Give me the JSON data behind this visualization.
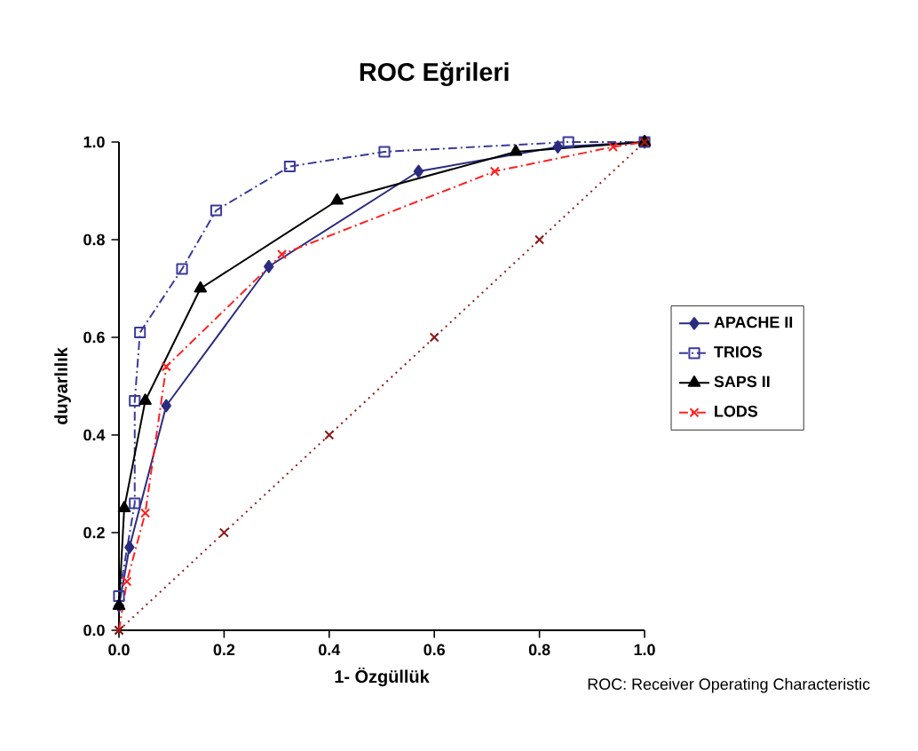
{
  "chart_data": {
    "type": "line",
    "title": "ROC Eğrileri",
    "xlabel": "1- Özgüllük",
    "ylabel": "duyarlılık",
    "annotations": [
      "ROC: Receiver Operating Characteristic"
    ],
    "xlim": [
      0,
      1
    ],
    "ylim": [
      0,
      1
    ],
    "xticks": [
      {
        "value": 0,
        "label": "0.0"
      },
      {
        "value": 0.2,
        "label": "0.2"
      },
      {
        "value": 0.4,
        "label": "0.4"
      },
      {
        "value": 0.6,
        "label": "0.6"
      },
      {
        "value": 0.8,
        "label": "0.8"
      },
      {
        "value": 1,
        "label": "1.0"
      }
    ],
    "yticks": [
      {
        "value": 0,
        "label": "0.0"
      },
      {
        "value": 0.2,
        "label": "0.2"
      },
      {
        "value": 0.4,
        "label": "0.4"
      },
      {
        "value": 0.6,
        "label": "0.6"
      },
      {
        "value": 0.8,
        "label": "0.8"
      },
      {
        "value": 1,
        "label": "1.0"
      }
    ],
    "legend": "right",
    "series": [
      {
        "name": "APACHE II",
        "color": "#2b2b7f",
        "marker": "diamond",
        "line_style": "solid",
        "x": [
          0,
          0.02,
          0.09,
          0.285,
          0.57,
          0.835,
          1
        ],
        "values": [
          0.05,
          0.17,
          0.46,
          0.745,
          0.94,
          0.99,
          1
        ]
      },
      {
        "name": "TRIOS",
        "color": "#3a3a9a",
        "marker": "square",
        "line_style": "dashed",
        "x": [
          0,
          0.03,
          0.03,
          0.04,
          0.12,
          0.185,
          0.325,
          0.505,
          0.855,
          1
        ],
        "values": [
          0.07,
          0.26,
          0.47,
          0.61,
          0.74,
          0.86,
          0.95,
          0.98,
          1,
          1
        ]
      },
      {
        "name": "SAPS II",
        "color": "#000000",
        "marker": "triangle",
        "line_style": "solid",
        "x": [
          0,
          0.01,
          0.05,
          0.155,
          0.415,
          0.755,
          1
        ],
        "values": [
          0.05,
          0.25,
          0.47,
          0.7,
          0.88,
          0.98,
          1
        ]
      },
      {
        "name": "LODS",
        "color": "#ff2020",
        "marker": "cross",
        "line_style": "dashed",
        "x": [
          0,
          0.015,
          0.05,
          0.09,
          0.31,
          0.715,
          0.94,
          1
        ],
        "values": [
          0,
          0.1,
          0.24,
          0.54,
          0.77,
          0.94,
          0.99,
          1
        ]
      },
      {
        "color": "#8b1a1a",
        "marker": "cross",
        "line_style": "dotted",
        "x": [
          0,
          0.2,
          0.4,
          0.6,
          0.8,
          1
        ],
        "values": [
          0,
          0.2,
          0.4,
          0.6,
          0.8,
          1
        ]
      }
    ]
  }
}
